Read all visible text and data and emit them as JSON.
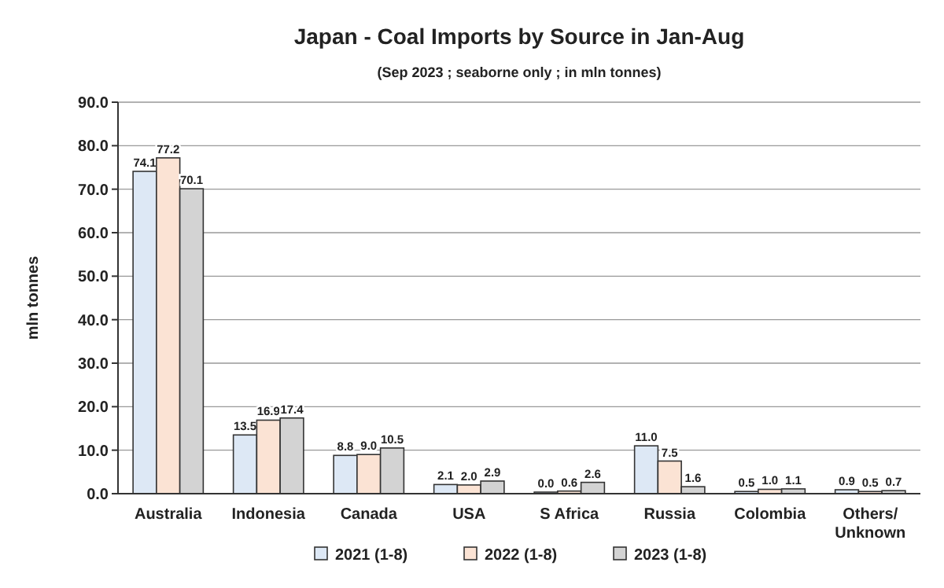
{
  "chart_data": {
    "type": "bar",
    "title": "Japan - Coal Imports by Source in Jan-Aug",
    "subtitle": "(Sep 2023 ; seaborne only ; in mln tonnes)",
    "ylabel": "mln tonnes",
    "categories": [
      "Australia",
      "Indonesia",
      "Canada",
      "USA",
      "S Africa",
      "Russia",
      "Colombia",
      "Others/\nUnknown"
    ],
    "series": [
      {
        "name": "2021 (1-8)",
        "color": "#dde8f5",
        "values": [
          74.1,
          13.5,
          8.8,
          2.1,
          0,
          11,
          0.5,
          0.9
        ],
        "value_labels": [
          "74.1",
          "13.5",
          "8.8",
          "2.1",
          "0.0",
          "11.0",
          "0.5",
          "0.9"
        ]
      },
      {
        "name": "2022 (1-8)",
        "color": "#fbe3d4",
        "values": [
          77.2,
          16.9,
          9,
          2,
          0.6,
          7.5,
          1,
          0.5
        ],
        "value_labels": [
          "77.2",
          "16.9",
          "9.0",
          "2.0",
          "0.6",
          "7.5",
          "1.0",
          "0.5"
        ]
      },
      {
        "name": "2023 (1-8)",
        "color": "#d3d3d3",
        "values": [
          70.1,
          17.4,
          10.5,
          2.9,
          2.6,
          1.6,
          1.1,
          0.7
        ],
        "value_labels": [
          "70.1",
          "17.4",
          "10.5",
          "2.9",
          "2.6",
          "1.6",
          "1.1",
          "0.7"
        ]
      }
    ],
    "ylim": [
      0,
      90
    ],
    "yticks": [
      {
        "value": 0,
        "label": "0.0"
      },
      {
        "value": 10,
        "label": "10.0"
      },
      {
        "value": 20,
        "label": "20.0"
      },
      {
        "value": 30,
        "label": "30.0"
      },
      {
        "value": 40,
        "label": "40.0"
      },
      {
        "value": 50,
        "label": "50.0"
      },
      {
        "value": 60,
        "label": "60.0"
      },
      {
        "value": 70,
        "label": "70.0"
      },
      {
        "value": 80,
        "label": "80.0"
      },
      {
        "value": 90,
        "label": "90.0"
      }
    ],
    "grid": "y",
    "legend": "bottom"
  }
}
